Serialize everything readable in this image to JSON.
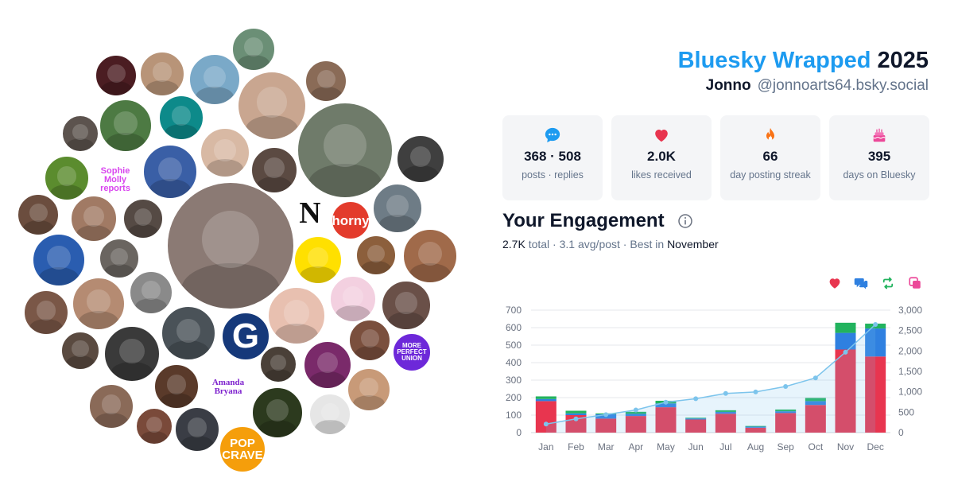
{
  "header": {
    "brand": "Bluesky Wrapped",
    "year": "2025",
    "display_name": "Jonno",
    "handle": "@jonnoarts64.bsky.social"
  },
  "stats": [
    {
      "icon": "speech-bubble-icon",
      "value": "368 · 508",
      "label": "posts · replies"
    },
    {
      "icon": "heart-icon",
      "value": "2.0K",
      "label": "likes received"
    },
    {
      "icon": "flame-icon",
      "value": "66",
      "label": "day posting streak"
    },
    {
      "icon": "cake-icon",
      "value": "395",
      "label": "days on Bluesky"
    }
  ],
  "engagement": {
    "title": "Your Engagement",
    "total": "2.7K",
    "total_word": "total",
    "avg": "3.1 avg/post",
    "best_prefix": "Best in",
    "best_month": "November"
  },
  "legend_icons": [
    "heart-icon",
    "reply-icon",
    "repost-icon",
    "quote-icon"
  ],
  "collage": {
    "labels": [
      "Sophie Molly reports",
      "N",
      "horny",
      "G",
      "MORE PERFECT UNION",
      "Amanda Bryana",
      "POP CRAVE"
    ]
  },
  "colors": {
    "brand": "#1d9bf0",
    "likes": "#e8354f",
    "replies": "#2f80e0",
    "reposts": "#22b35e",
    "cumulative": "#7cc4ec"
  },
  "chart_data": {
    "type": "bar",
    "stacked": true,
    "categories": [
      "Jan",
      "Feb",
      "Mar",
      "Apr",
      "May",
      "Jun",
      "Jul",
      "Aug",
      "Sep",
      "Oct",
      "Nov",
      "Dec"
    ],
    "series": [
      {
        "values": [
          180,
          100,
          80,
          95,
          145,
          75,
          108,
          28,
          112,
          158,
          475,
          435
        ]
      },
      {
        "values": [
          12,
          10,
          25,
          12,
          22,
          6,
          10,
          6,
          10,
          22,
          95,
          160
        ]
      },
      {
        "values": [
          15,
          15,
          5,
          12,
          15,
          4,
          10,
          4,
          10,
          18,
          58,
          28
        ]
      }
    ],
    "cumulative": [
      210,
      335,
      440,
      555,
      745,
      830,
      960,
      995,
      1130,
      1340,
      1970,
      2650
    ],
    "ylim": [
      0,
      700
    ],
    "yticks": [
      0,
      100,
      200,
      300,
      400,
      500,
      600,
      700
    ],
    "y2lim": [
      0,
      3000
    ],
    "y2ticks": [
      0,
      500,
      1000,
      1500,
      2000,
      2500,
      3000
    ],
    "y2ticklabels": [
      "0",
      "500",
      "1,000",
      "1,500",
      "2,000",
      "2,500",
      "3,000"
    ],
    "grid": true
  }
}
